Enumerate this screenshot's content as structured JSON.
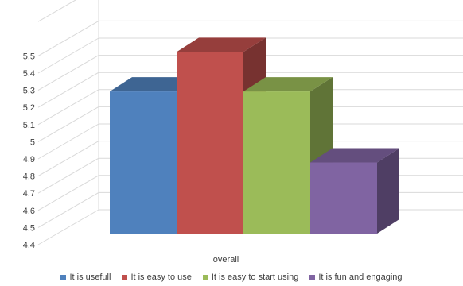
{
  "chart_data": {
    "type": "bar",
    "categories": [
      "overall"
    ],
    "series": [
      {
        "name": "It is usefull",
        "values": [
          5.25
        ],
        "color": "#4f81bd"
      },
      {
        "name": "It is easy to use",
        "values": [
          5.5
        ],
        "color": "#c0504d"
      },
      {
        "name": "It is easy to start using",
        "values": [
          5.25
        ],
        "color": "#9bbb59"
      },
      {
        "name": "It is fun and engaging",
        "values": [
          4.8
        ],
        "color": "#8064a2"
      }
    ],
    "title": "",
    "xlabel": "",
    "ylabel": "",
    "ylim": [
      4.4,
      5.7
    ],
    "yticks": [
      "4.4",
      "4.5",
      "4.6",
      "4.7",
      "4.8",
      "4.9",
      "5",
      "5.1",
      "5.2",
      "5.3",
      "5.4",
      "5.5"
    ],
    "grid": true,
    "legend_position": "bottom",
    "style": "3d-clustered-column"
  }
}
